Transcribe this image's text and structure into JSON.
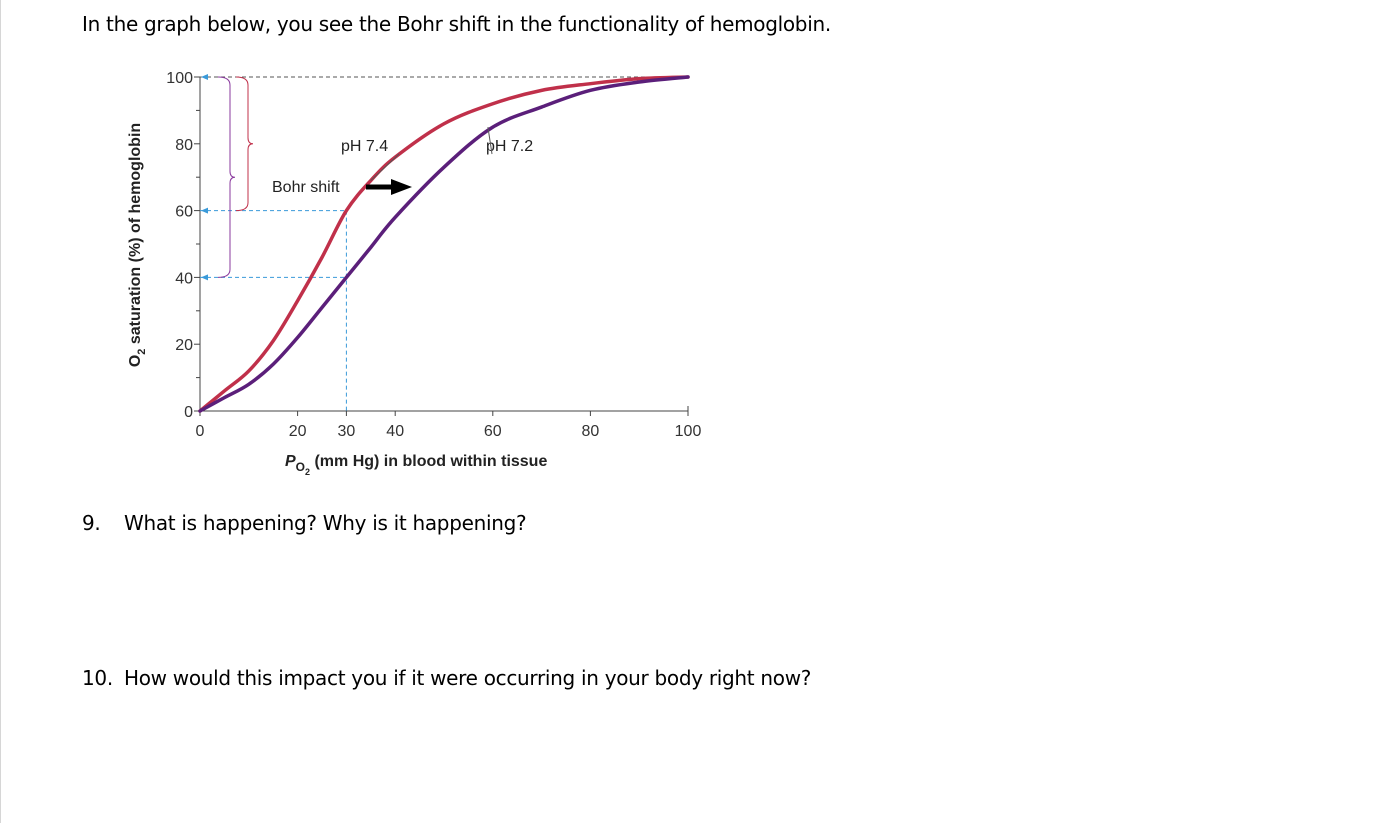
{
  "document": {
    "intro": "In the graph below, you see the Bohr shift in the functionality of hemoglobin.",
    "questions": [
      {
        "number": "9.",
        "text": "What is happening? Why is it happening?"
      },
      {
        "number": "10.",
        "text": "How would this impact you if it were occurring in your body right now?"
      }
    ]
  },
  "chart_data": {
    "type": "line",
    "title": "",
    "ylabel_main": "O",
    "ylabel_sub": "2",
    "ylabel_rest": " saturation (%) of hemoglobin",
    "xlabel_main": "P",
    "xlabel_sub1": "O",
    "xlabel_sub2": "2",
    "xlabel_rest": " (mm Hg) in blood within tissue",
    "xlim": [
      0,
      100
    ],
    "ylim": [
      0,
      100
    ],
    "x_ticks": [
      0,
      20,
      30,
      40,
      60,
      80,
      100
    ],
    "y_ticks": [
      0,
      20,
      40,
      60,
      80,
      100
    ],
    "series": [
      {
        "name": "pH 7.4",
        "color": "#c0304a",
        "x": [
          0,
          5,
          10,
          15,
          20,
          25,
          30,
          35,
          40,
          50,
          60,
          70,
          80,
          90,
          100
        ],
        "y": [
          0,
          6,
          12,
          21,
          33,
          46,
          60,
          69,
          76,
          86,
          92,
          96,
          98,
          99.5,
          100
        ]
      },
      {
        "name": "pH 7.2",
        "color": "#5b1f7a",
        "x": [
          0,
          5,
          10,
          15,
          20,
          25,
          30,
          35,
          40,
          50,
          60,
          70,
          80,
          90,
          100
        ],
        "y": [
          0,
          4,
          8,
          14,
          22,
          31,
          40,
          49,
          58,
          73,
          85,
          91,
          96,
          98.5,
          100
        ]
      }
    ],
    "annotations": {
      "shift_label": "Bohr shift",
      "guide_x": 30,
      "guide_y_high": 60,
      "guide_y_low": 40,
      "guide_y_top": 100
    }
  }
}
